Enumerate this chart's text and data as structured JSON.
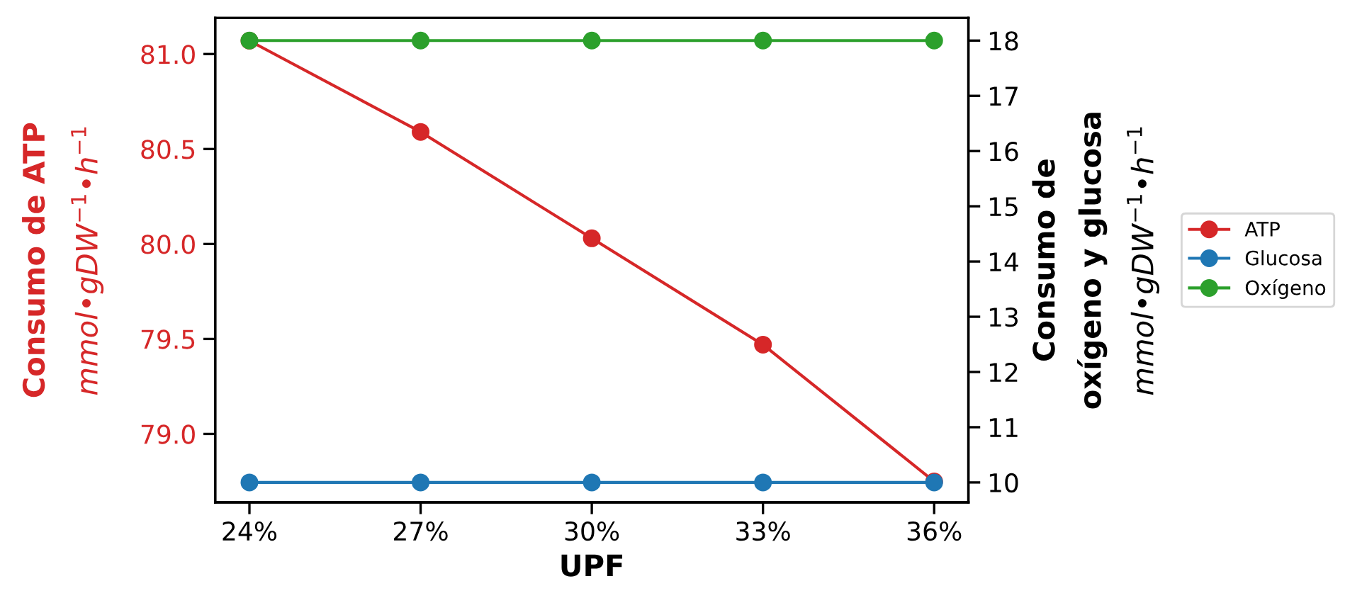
{
  "chart_data": {
    "type": "line",
    "xlabel": "UPF",
    "ylabel": "Consumo de ATP\nmmol•gDW$^{−1}$•h$^{−1}$",
    "y2label": "Consumo de\noxígeno y glucosa\nmmol•gDW$^{−1}$•h$^{−1}$",
    "categories": [
      "24%",
      "27%",
      "30%",
      "33%",
      "36%"
    ],
    "series": [
      {
        "name": "ATP",
        "color": "#d62728",
        "values": [
          81.07,
          80.59,
          80.03,
          79.47,
          78.75
        ]
      },
      {
        "name": "Glucosa",
        "color": "#1f77b4",
        "values": [
          10,
          10,
          10,
          10,
          10
        ],
        "axis": "y2"
      },
      {
        "name": "Oxígeno",
        "color": "#2ca02c",
        "values": [
          18,
          18,
          18,
          18,
          18
        ],
        "axis": "y2"
      }
    ],
    "ylim": [
      78.64,
      81.19
    ],
    "yticks": [
      {
        "value": 79,
        "label": "79.0"
      },
      79.5,
      {
        "value": 80,
        "label": "80.0"
      },
      80.5,
      {
        "value": 81,
        "label": "81.0"
      }
    ],
    "y2lim": [
      9.64,
      18.41
    ],
    "y2ticks": [
      10,
      11,
      12,
      13,
      14,
      15,
      16,
      17,
      18
    ],
    "marker": "circle",
    "line_style": "solid",
    "grid": false,
    "legend": "right"
  }
}
